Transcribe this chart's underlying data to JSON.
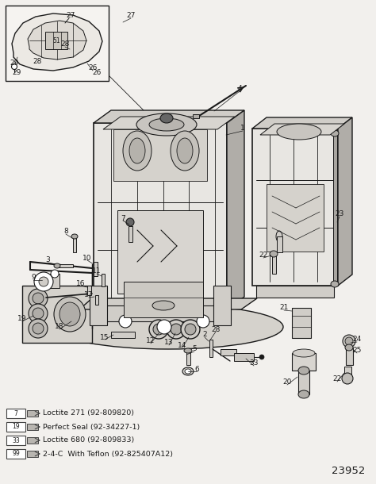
{
  "background_color": "#f2f0ed",
  "title_number": "23952",
  "legend_items": [
    {
      "number": "7",
      "text": "Loctite 271 (92-809820)"
    },
    {
      "number": "19",
      "text": "Perfect Seal (92-34227-1)"
    },
    {
      "number": "33",
      "text": "Loctite 680 (92-809833)"
    },
    {
      "number": "99",
      "text": "2-4-C  With Teflon (92-825407A12)"
    }
  ],
  "fig_width": 4.74,
  "fig_height": 6.1,
  "dpi": 100,
  "line_color": "#1a1a1a",
  "fill_light": "#e8e6e2",
  "fill_mid": "#d0cdc8",
  "fill_dark": "#b0ada8",
  "text_color": "#1a1a1a"
}
